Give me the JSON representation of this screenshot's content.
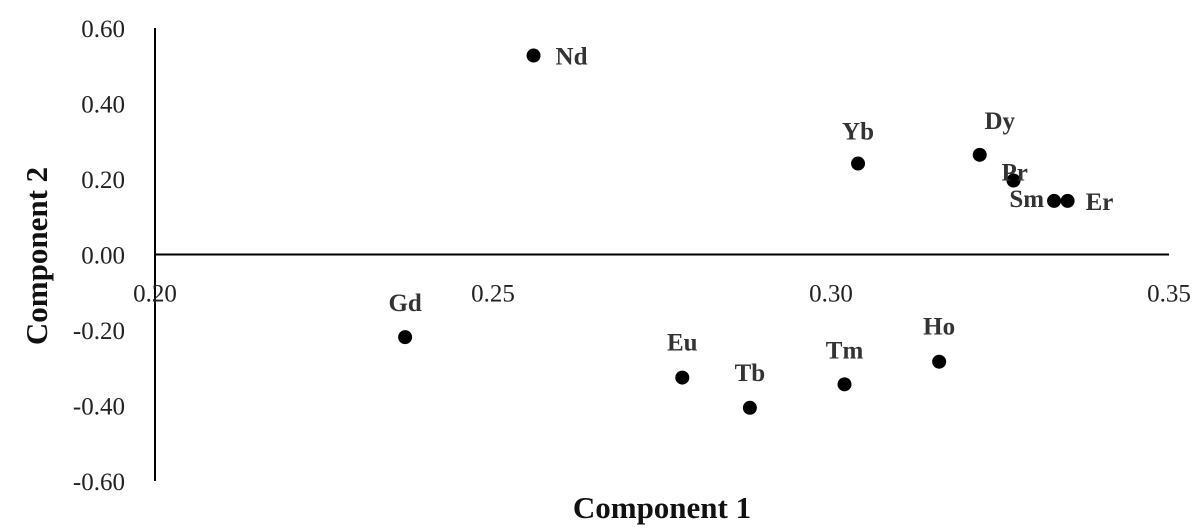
{
  "chart_data": {
    "type": "scatter",
    "xlabel": "Component 1",
    "ylabel": "Component 2",
    "xlim": [
      0.2,
      0.35
    ],
    "ylim": [
      -0.6,
      0.6
    ],
    "x_ticks": [
      "0.20",
      "0.25",
      "0.30",
      "0.35"
    ],
    "y_ticks": [
      "0.60",
      "0.40",
      "0.20",
      "0.00",
      "-0.20",
      "-0.40",
      "-0.60"
    ],
    "grid": false,
    "legend": "none",
    "marker_color": "#000000",
    "points": [
      {
        "label": "Nd",
        "x": 0.256,
        "y": 0.527
      },
      {
        "label": "Yb",
        "x": 0.304,
        "y": 0.241
      },
      {
        "label": "Dy",
        "x": 0.322,
        "y": 0.264
      },
      {
        "label": "Pr",
        "x": 0.327,
        "y": 0.196
      },
      {
        "label": "Sm",
        "x": 0.333,
        "y": 0.142
      },
      {
        "label": "Er",
        "x": 0.335,
        "y": 0.142
      },
      {
        "label": "Gd",
        "x": 0.237,
        "y": -0.219
      },
      {
        "label": "Eu",
        "x": 0.278,
        "y": -0.326
      },
      {
        "label": "Tb",
        "x": 0.288,
        "y": -0.406
      },
      {
        "label": "Tm",
        "x": 0.302,
        "y": -0.344
      },
      {
        "label": "Ho",
        "x": 0.316,
        "y": -0.284
      }
    ]
  }
}
